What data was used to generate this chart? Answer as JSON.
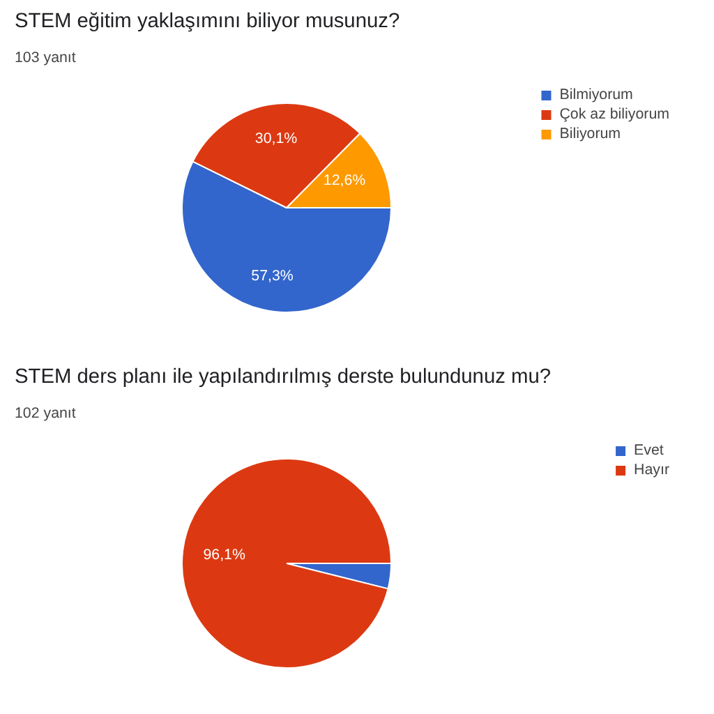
{
  "chart_data": [
    {
      "type": "pie",
      "title": "STEM eğitim yaklaşımını biliyor musunuz?",
      "subtitle": "103 yanıt",
      "categories": [
        "Bilmiyorum",
        "Çok az biliyorum",
        "Biliyorum"
      ],
      "values": [
        57.3,
        30.1,
        12.6
      ],
      "colors": [
        "#3366cc",
        "#dc3912",
        "#ff9900"
      ],
      "value_labels": [
        "57,3%",
        "30,1%",
        "12,6%"
      ],
      "legend": "top right"
    },
    {
      "type": "pie",
      "title": "STEM ders planı ile yapılandırılmış derste bulundunuz mu?",
      "subtitle": "102 yanıt",
      "categories": [
        "Evet",
        "Hayır"
      ],
      "values": [
        3.9,
        96.1
      ],
      "colors": [
        "#3366cc",
        "#dc3912"
      ],
      "value_labels": [
        null,
        "96,1%"
      ],
      "legend": "top right"
    }
  ]
}
